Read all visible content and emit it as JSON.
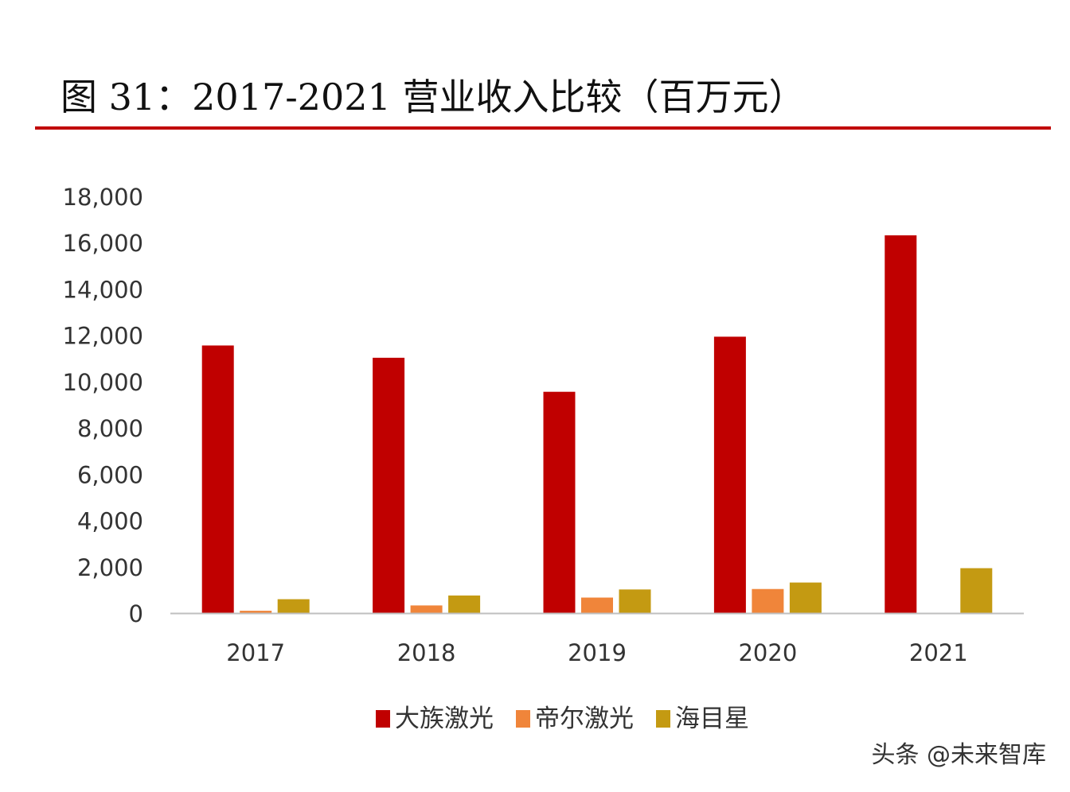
{
  "figure": {
    "title": "图  31：2017-2021 营业收入比较（百万元）",
    "accent_color": "#c00000"
  },
  "watermark": "头条 @未来智库",
  "chart_data": {
    "type": "bar",
    "title": "图  31：2017-2021 营业收入比较（百万元）",
    "categories": [
      "2017",
      "2018",
      "2019",
      "2020",
      "2021"
    ],
    "series": [
      {
        "name": "大族激光",
        "color": "#c00000",
        "values": [
          11560,
          11030,
          9560,
          11940,
          16320
        ]
      },
      {
        "name": "帝尔激光",
        "color": "#f0853a",
        "values": [
          100,
          330,
          670,
          1040,
          null
        ]
      },
      {
        "name": "海目星",
        "color": "#c49a12",
        "values": [
          600,
          760,
          1020,
          1320,
          1940
        ]
      }
    ],
    "y_ticks": [
      "0",
      "2,000",
      "4,000",
      "6,000",
      "8,000",
      "10,000",
      "12,000",
      "14,000",
      "16,000",
      "18,000"
    ],
    "ylim": [
      0,
      18000
    ],
    "xlabel": "",
    "ylabel": "",
    "grid": false,
    "legend_position": "bottom"
  }
}
